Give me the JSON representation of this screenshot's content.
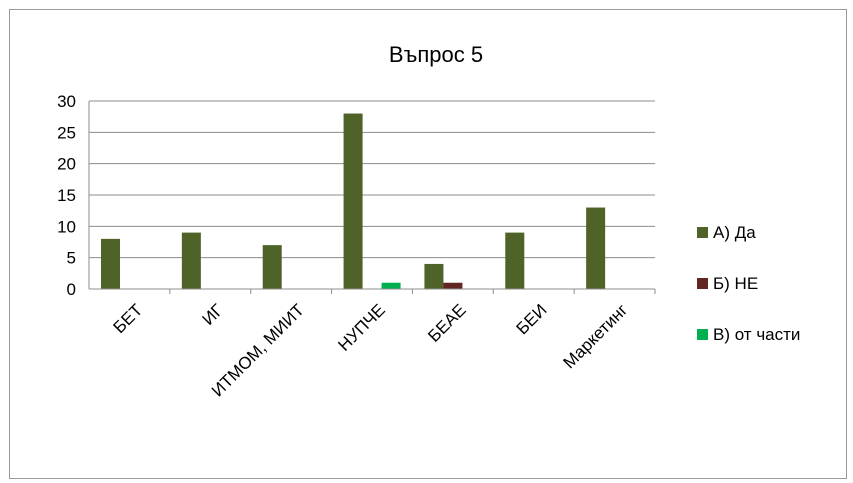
{
  "chart_data": {
    "type": "bar",
    "title": "Въпрос 5",
    "categories": [
      "БЕТ",
      "ИГ",
      "ИТМОМ, МИИТ",
      "НУПЧЕ",
      "БЕАЕ",
      "БЕИ",
      "Маркетинг"
    ],
    "series": [
      {
        "name": "А) Да",
        "color": "#4f6228",
        "values": [
          8,
          9,
          7,
          28,
          4,
          9,
          13
        ]
      },
      {
        "name": "Б) НЕ",
        "color": "#632523",
        "values": [
          0,
          0,
          0,
          0,
          1,
          0,
          0
        ]
      },
      {
        "name": "В) от части",
        "color": "#00b050",
        "values": [
          0,
          0,
          0,
          1,
          0,
          0,
          0
        ]
      }
    ],
    "ylim": [
      0,
      30
    ],
    "yticks": [
      0,
      5,
      10,
      15,
      20,
      25,
      30
    ],
    "grid": true,
    "legend": "right"
  }
}
